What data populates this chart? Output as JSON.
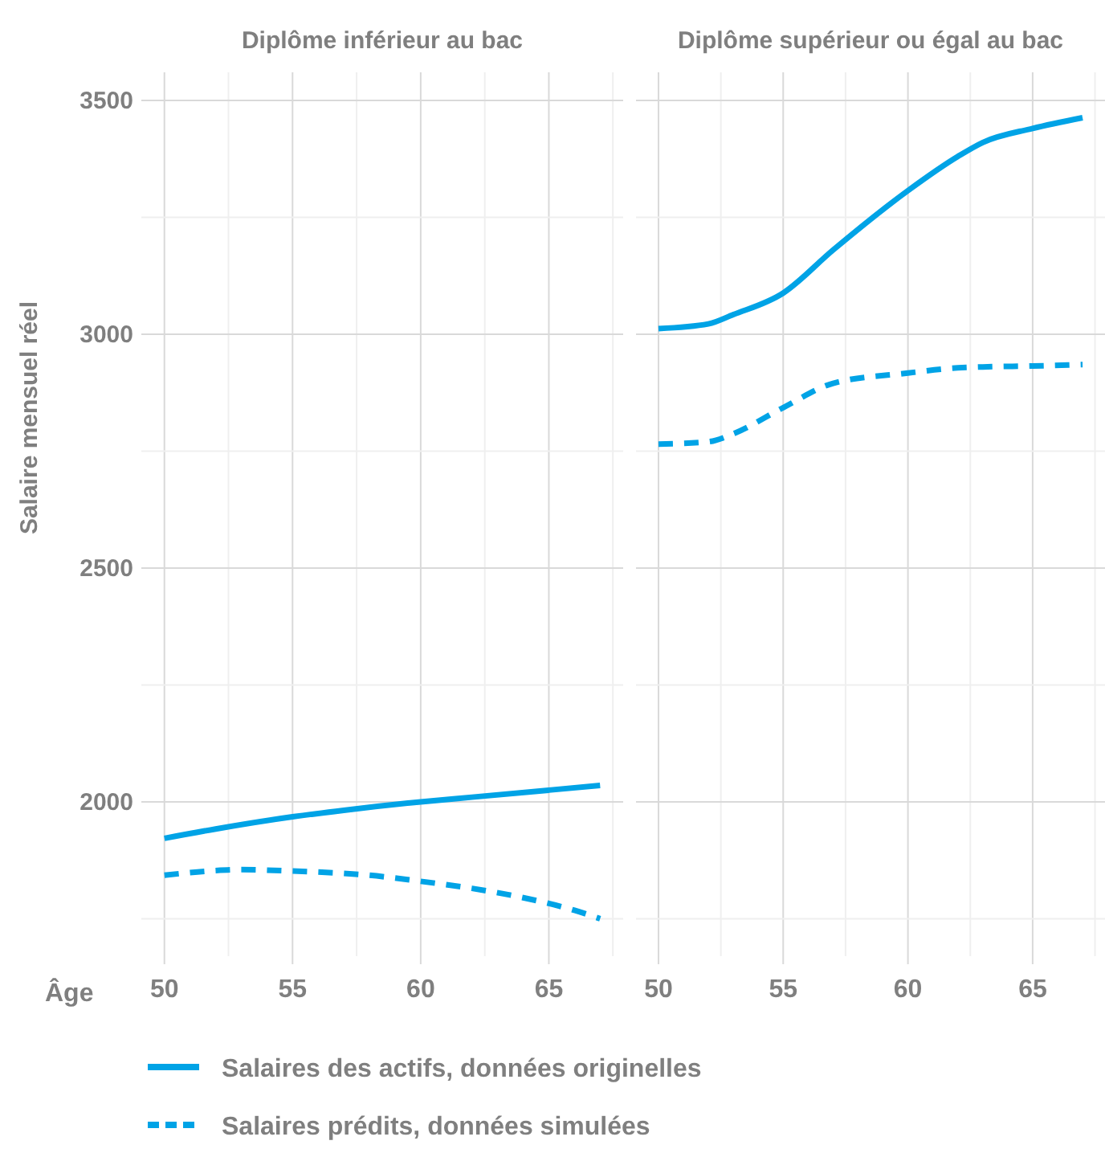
{
  "chart_data": [
    {
      "type": "line",
      "title": "Diplôme inférieur au bac",
      "xlabel": "Âge",
      "ylabel": "Salaire mensuel réel",
      "xlim": [
        49.1,
        67.9
      ],
      "xticks": [
        50,
        55,
        60,
        65
      ],
      "ylim": [
        1670,
        3560
      ],
      "yticks": [
        2000,
        2500,
        3000,
        3500
      ],
      "grid": true,
      "legend": "bottom",
      "series": [
        {
          "name": "Salaires des actifs, données originelles",
          "color": "#00a3e6",
          "line_style": "solid",
          "x": [
            50,
            52,
            55,
            57,
            60,
            62,
            65,
            67
          ],
          "values": [
            1922,
            1942,
            1968,
            1982,
            2000,
            2010,
            2025,
            2035
          ]
        },
        {
          "name": "Salaires prédits, données simulées",
          "color": "#00a3e6",
          "line_style": "dashed",
          "x": [
            50,
            52,
            53,
            55,
            58,
            60,
            62,
            64,
            66,
            67
          ],
          "values": [
            1843,
            1853,
            1855,
            1852,
            1843,
            1830,
            1815,
            1795,
            1768,
            1750
          ]
        }
      ]
    },
    {
      "type": "line",
      "title": "Diplôme supérieur ou égal au bac",
      "xlim": [
        49.1,
        67.9
      ],
      "xticks": [
        50,
        55,
        60,
        65
      ],
      "ylim": [
        1670,
        3560
      ],
      "yticks": [
        2000,
        2500,
        3000,
        3500
      ],
      "grid": true,
      "tick_labels": "x",
      "series": [
        {
          "color": "#00a3e6",
          "line_style": "solid",
          "x": [
            50,
            52,
            53,
            55,
            57,
            60,
            62,
            63,
            65,
            67
          ],
          "values": [
            3012,
            3022,
            3042,
            3088,
            3180,
            3307,
            3380,
            3410,
            3440,
            3463
          ]
        },
        {
          "color": "#00a3e6",
          "line_style": "dashed",
          "x": [
            50,
            52,
            53,
            55,
            57,
            60,
            62,
            63,
            65,
            67
          ],
          "values": [
            2765,
            2770,
            2787,
            2843,
            2895,
            2917,
            2928,
            2930,
            2932,
            2935
          ]
        }
      ]
    }
  ]
}
